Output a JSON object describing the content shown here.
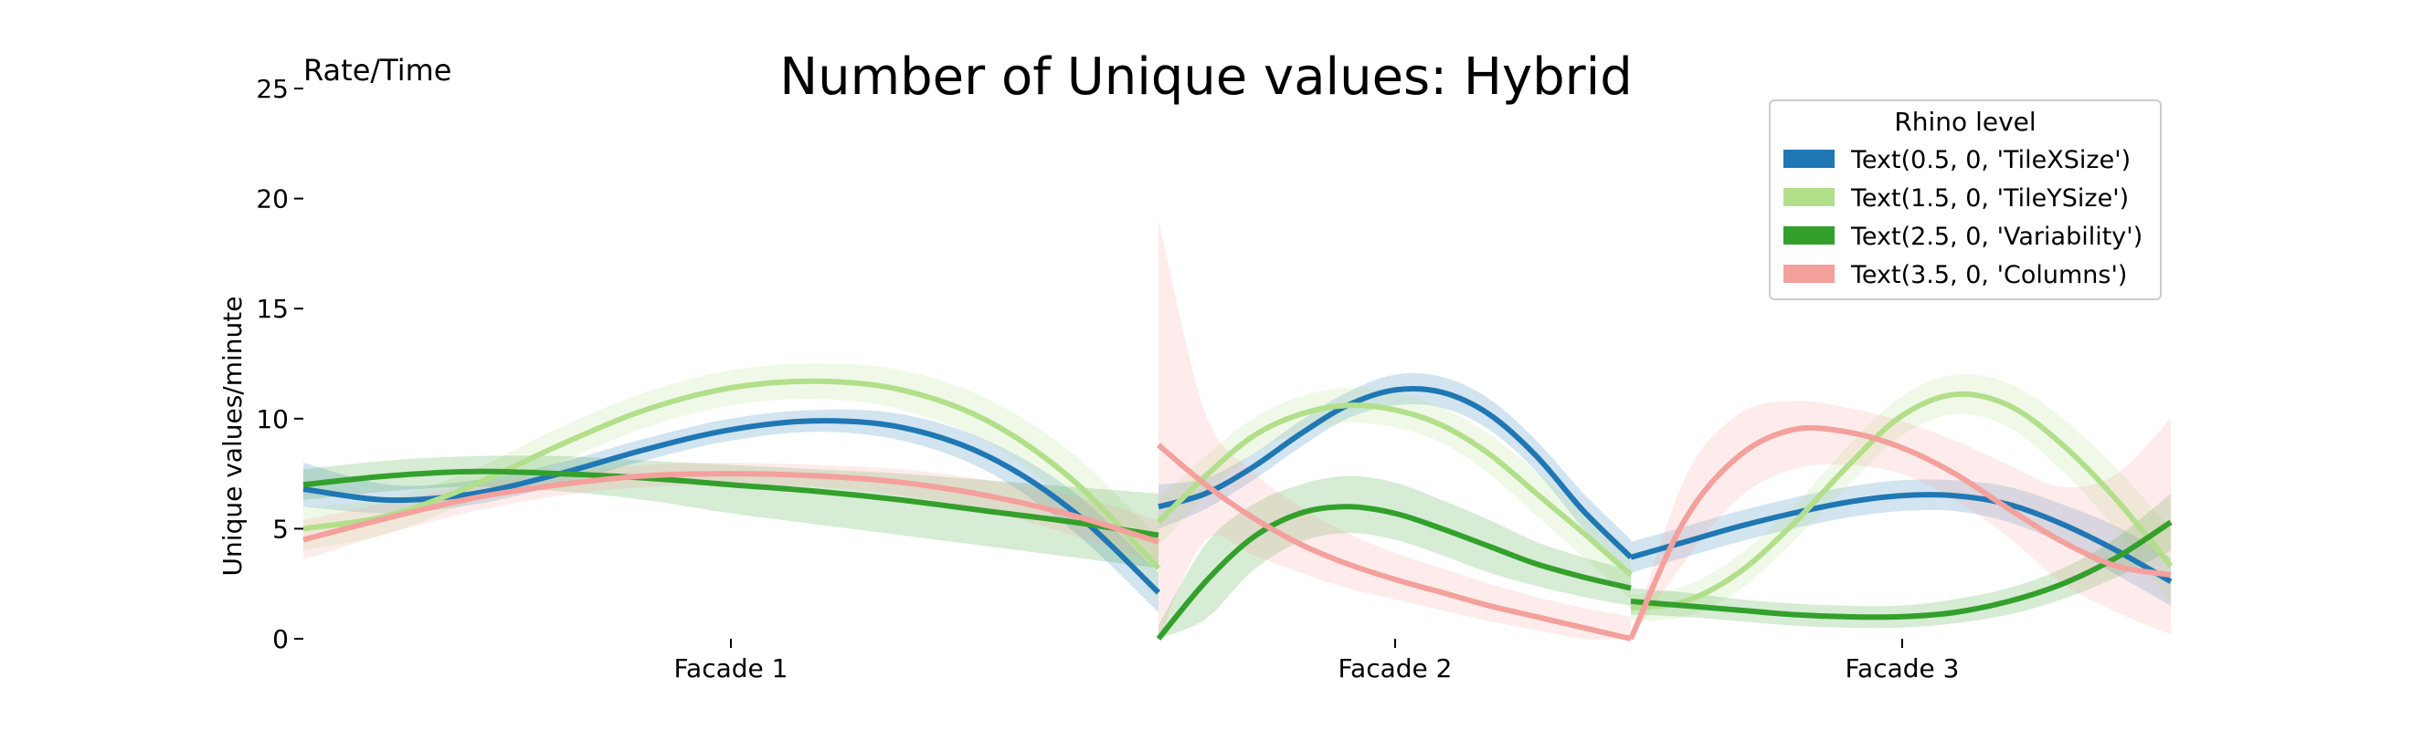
{
  "chart_data": {
    "type": "line",
    "title": "Number of Unique values: Hybrid",
    "corner_label": "Rate/Time",
    "xlabel": "",
    "ylabel": "Unique values/minute",
    "ylim": [
      0,
      25
    ],
    "yticks": [
      0,
      5,
      10,
      15,
      20,
      25
    ],
    "categories": [
      "Facade 1",
      "Facade 2",
      "Facade 3"
    ],
    "grid": false,
    "legend": {
      "title": "Rhino level",
      "placement": "top-right"
    },
    "colors": {
      "TileXSize": "#1f77b4",
      "TileYSize": "#b2df8a",
      "Variability": "#33a02c",
      "Columns": "#f4a09c"
    },
    "series": [
      {
        "name": "Text(0.5, 0, 'TileXSize')",
        "color": "#1f77b4",
        "segments": [
          {
            "x": [
              0.0,
              0.1,
              0.2,
              0.3,
              0.4,
              0.5,
              0.6,
              0.7,
              0.8,
              0.9,
              1.0
            ],
            "y": [
              6.8,
              6.3,
              6.6,
              7.5,
              8.6,
              9.5,
              9.9,
              9.6,
              8.3,
              5.8,
              2.1
            ],
            "lower": [
              6.0,
              5.7,
              6.1,
              7.0,
              8.1,
              9.0,
              9.4,
              9.0,
              7.6,
              4.9,
              1.2
            ],
            "upper": [
              8.0,
              7.0,
              7.2,
              8.0,
              9.1,
              10.0,
              10.4,
              10.2,
              9.0,
              6.7,
              3.0
            ]
          },
          {
            "x": [
              0.0,
              0.1,
              0.2,
              0.3,
              0.4,
              0.5,
              0.6,
              0.7,
              0.8,
              0.9,
              1.0
            ],
            "y": [
              6.0,
              6.6,
              7.8,
              9.3,
              10.6,
              11.3,
              11.2,
              10.2,
              8.3,
              5.8,
              3.7
            ],
            "lower": [
              5.0,
              5.9,
              7.2,
              8.7,
              10.0,
              10.6,
              10.5,
              9.5,
              7.6,
              5.0,
              2.9
            ],
            "upper": [
              7.0,
              7.3,
              8.4,
              9.9,
              11.2,
              12.0,
              11.9,
              10.9,
              9.0,
              6.6,
              4.5
            ]
          },
          {
            "x": [
              0.0,
              0.1,
              0.2,
              0.3,
              0.4,
              0.5,
              0.6,
              0.7,
              0.8,
              0.9,
              1.0
            ],
            "y": [
              3.7,
              4.4,
              5.1,
              5.7,
              6.2,
              6.5,
              6.5,
              6.1,
              5.2,
              4.0,
              2.6
            ],
            "lower": [
              3.0,
              3.7,
              4.4,
              5.0,
              5.5,
              5.8,
              5.8,
              5.3,
              4.3,
              2.9,
              1.5
            ],
            "upper": [
              4.4,
              5.1,
              5.8,
              6.4,
              6.9,
              7.2,
              7.2,
              6.9,
              6.1,
              5.1,
              3.7
            ]
          }
        ]
      },
      {
        "name": "Text(1.5, 0, 'TileYSize')",
        "color": "#b2df8a",
        "segments": [
          {
            "x": [
              0.0,
              0.1,
              0.2,
              0.3,
              0.4,
              0.5,
              0.6,
              0.7,
              0.8,
              0.9,
              1.0
            ],
            "y": [
              5.0,
              5.6,
              7.0,
              8.8,
              10.4,
              11.4,
              11.7,
              11.3,
              9.9,
              7.2,
              3.2
            ],
            "lower": [
              4.0,
              4.8,
              6.3,
              8.0,
              9.6,
              10.6,
              10.9,
              10.4,
              8.9,
              6.0,
              1.8
            ],
            "upper": [
              6.0,
              6.4,
              7.7,
              9.6,
              11.2,
              12.2,
              12.5,
              12.2,
              10.9,
              8.4,
              4.6
            ]
          },
          {
            "x": [
              0.0,
              0.1,
              0.2,
              0.3,
              0.4,
              0.5,
              0.6,
              0.7,
              0.8,
              0.9,
              1.0
            ],
            "y": [
              5.3,
              7.4,
              9.2,
              10.2,
              10.6,
              10.4,
              9.7,
              8.4,
              6.6,
              4.8,
              2.9
            ],
            "lower": [
              4.2,
              6.5,
              8.4,
              9.4,
              9.8,
              9.6,
              8.9,
              7.5,
              5.6,
              3.7,
              1.8
            ],
            "upper": [
              6.4,
              8.3,
              10.0,
              11.0,
              11.4,
              11.2,
              10.5,
              9.3,
              7.6,
              5.9,
              4.0
            ]
          },
          {
            "x": [
              0.0,
              0.1,
              0.2,
              0.3,
              0.4,
              0.5,
              0.6,
              0.7,
              0.8,
              0.9,
              1.0
            ],
            "y": [
              1.4,
              1.7,
              3.0,
              5.2,
              7.8,
              10.1,
              11.1,
              10.6,
              8.8,
              6.3,
              3.3
            ],
            "lower": [
              0.8,
              1.0,
              2.2,
              4.4,
              6.9,
              9.2,
              10.2,
              9.6,
              7.6,
              4.9,
              1.6
            ],
            "upper": [
              2.0,
              2.4,
              3.8,
              6.0,
              8.7,
              11.0,
              12.0,
              11.6,
              10.0,
              7.7,
              5.0
            ]
          }
        ]
      },
      {
        "name": "Text(2.5, 0, 'Variability')",
        "color": "#33a02c",
        "segments": [
          {
            "x": [
              0.0,
              0.1,
              0.2,
              0.3,
              0.4,
              0.5,
              0.6,
              0.7,
              0.8,
              0.9,
              1.0
            ],
            "y": [
              7.0,
              7.4,
              7.6,
              7.5,
              7.3,
              7.0,
              6.7,
              6.3,
              5.8,
              5.3,
              4.7
            ],
            "lower": [
              6.3,
              6.7,
              6.9,
              6.7,
              6.3,
              5.7,
              5.2,
              4.7,
              4.2,
              3.7,
              3.2
            ],
            "upper": [
              7.7,
              8.1,
              8.3,
              8.3,
              8.1,
              7.9,
              7.7,
              7.5,
              7.2,
              6.9,
              6.6
            ]
          },
          {
            "x": [
              0.0,
              0.1,
              0.2,
              0.3,
              0.4,
              0.5,
              0.6,
              0.7,
              0.8,
              0.9,
              1.0
            ],
            "y": [
              0.0,
              2.6,
              4.6,
              5.7,
              6.0,
              5.7,
              5.0,
              4.2,
              3.4,
              2.8,
              2.3
            ],
            "lower": [
              0.0,
              0.9,
              3.1,
              4.4,
              4.8,
              4.5,
              3.8,
              3.0,
              2.4,
              1.9,
              1.5
            ],
            "upper": [
              0.6,
              4.3,
              6.1,
              7.0,
              7.4,
              7.1,
              6.3,
              5.4,
              4.4,
              3.7,
              3.1
            ]
          },
          {
            "x": [
              0.0,
              0.1,
              0.2,
              0.3,
              0.4,
              0.5,
              0.6,
              0.7,
              0.8,
              0.9,
              1.0
            ],
            "y": [
              1.7,
              1.5,
              1.3,
              1.1,
              1.0,
              1.0,
              1.2,
              1.7,
              2.5,
              3.7,
              5.3
            ],
            "lower": [
              1.1,
              1.0,
              0.8,
              0.6,
              0.5,
              0.5,
              0.7,
              1.1,
              1.8,
              2.8,
              4.0
            ],
            "upper": [
              2.3,
              2.1,
              1.8,
              1.6,
              1.5,
              1.5,
              1.8,
              2.3,
              3.2,
              4.6,
              6.6
            ]
          }
        ]
      },
      {
        "name": "Text(3.5, 0, 'Columns')",
        "color": "#f4a09c",
        "segments": [
          {
            "x": [
              0.0,
              0.1,
              0.2,
              0.3,
              0.4,
              0.5,
              0.6,
              0.7,
              0.8,
              0.9,
              1.0
            ],
            "y": [
              4.5,
              5.5,
              6.4,
              7.0,
              7.4,
              7.5,
              7.4,
              7.1,
              6.5,
              5.6,
              4.4
            ],
            "lower": [
              3.6,
              4.8,
              5.8,
              6.5,
              6.9,
              7.0,
              6.9,
              6.5,
              5.8,
              4.7,
              3.4
            ],
            "upper": [
              5.4,
              6.2,
              7.0,
              7.5,
              7.9,
              8.0,
              7.9,
              7.7,
              7.2,
              6.5,
              5.4
            ]
          },
          {
            "x": [
              0.0,
              0.1,
              0.2,
              0.3,
              0.4,
              0.5,
              0.6,
              0.7,
              0.8,
              0.9,
              1.0
            ],
            "y": [
              8.8,
              7.0,
              5.5,
              4.3,
              3.4,
              2.7,
              2.1,
              1.5,
              1.0,
              0.5,
              0.0
            ],
            "lower": [
              0.0,
              4.5,
              3.8,
              3.0,
              2.3,
              1.8,
              1.3,
              0.8,
              0.4,
              0.0,
              0.0
            ],
            "upper": [
              19.0,
              10.2,
              7.6,
              6.0,
              4.8,
              3.9,
              3.2,
              2.5,
              1.9,
              1.4,
              1.0
            ]
          },
          {
            "x": [
              0.0,
              0.1,
              0.2,
              0.3,
              0.4,
              0.5,
              0.6,
              0.7,
              0.8,
              0.9,
              1.0
            ],
            "y": [
              0.0,
              5.4,
              8.3,
              9.5,
              9.4,
              8.7,
              7.5,
              5.9,
              4.4,
              3.3,
              2.9
            ],
            "lower": [
              0.0,
              3.5,
              6.4,
              7.7,
              7.9,
              7.5,
              6.3,
              4.6,
              2.5,
              1.2,
              0.2
            ],
            "upper": [
              0.0,
              7.3,
              10.2,
              10.8,
              10.5,
              9.9,
              9.0,
              7.9,
              6.9,
              7.5,
              10.0
            ]
          }
        ]
      }
    ]
  }
}
